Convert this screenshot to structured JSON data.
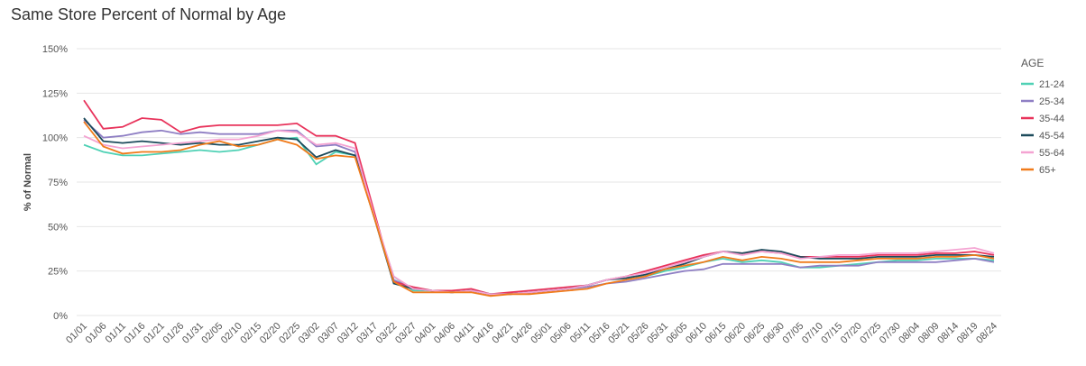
{
  "chart_data": {
    "type": "line",
    "title": "Same Store Percent of Normal by Age",
    "y_label": "% of Normal",
    "legend_title": "AGE",
    "legend_position": "right",
    "grid": true,
    "categories": [
      "01/01",
      "01/06",
      "01/11",
      "01/16",
      "01/21",
      "01/26",
      "01/31",
      "02/05",
      "02/10",
      "02/15",
      "02/20",
      "02/25",
      "03/02",
      "03/07",
      "03/12",
      "03/17",
      "03/22",
      "03/27",
      "04/01",
      "04/06",
      "04/11",
      "04/16",
      "04/21",
      "04/26",
      "05/01",
      "05/06",
      "05/11",
      "05/16",
      "05/21",
      "05/26",
      "05/31",
      "06/05",
      "06/10",
      "06/15",
      "06/20",
      "06/25",
      "06/30",
      "07/05",
      "07/10",
      "07/15",
      "07/20",
      "07/25",
      "07/30",
      "08/04",
      "08/09",
      "08/14",
      "08/19",
      "08/24"
    ],
    "ylim": [
      0,
      150
    ],
    "yticks": [
      {
        "value": 0,
        "label": "0%"
      },
      {
        "value": 25,
        "label": "25%"
      },
      {
        "value": 50,
        "label": "50%"
      },
      {
        "value": 75,
        "label": "75%"
      },
      {
        "value": 100,
        "label": "100%"
      },
      {
        "value": 125,
        "label": "125%"
      },
      {
        "value": 150,
        "label": "150%"
      }
    ],
    "series": [
      {
        "name": "21-24",
        "color": "#4fd1b5",
        "values": [
          96,
          92,
          90,
          90,
          91,
          92,
          93,
          92,
          93,
          96,
          99,
          100,
          85,
          92,
          90,
          55,
          22,
          14,
          14,
          13,
          14,
          12,
          12,
          13,
          14,
          15,
          17,
          20,
          22,
          22,
          25,
          27,
          30,
          32,
          30,
          31,
          30,
          27,
          27,
          28,
          29,
          30,
          31,
          31,
          32,
          32,
          32,
          31
        ]
      },
      {
        "name": "25-34",
        "color": "#8f7fc4",
        "values": [
          110,
          100,
          101,
          103,
          104,
          102,
          103,
          102,
          102,
          102,
          104,
          104,
          95,
          96,
          92,
          56,
          20,
          15,
          14,
          13,
          14,
          12,
          12,
          13,
          14,
          15,
          16,
          18,
          19,
          21,
          23,
          25,
          26,
          29,
          29,
          29,
          29,
          27,
          28,
          28,
          28,
          30,
          30,
          30,
          30,
          31,
          32,
          30
        ]
      },
      {
        "name": "35-44",
        "color": "#e8335b",
        "values": [
          121,
          105,
          106,
          111,
          110,
          103,
          106,
          107,
          107,
          107,
          107,
          108,
          101,
          101,
          97,
          58,
          19,
          16,
          14,
          14,
          15,
          12,
          13,
          14,
          15,
          16,
          17,
          20,
          22,
          25,
          28,
          31,
          34,
          36,
          35,
          36,
          35,
          33,
          33,
          33,
          33,
          34,
          34,
          34,
          35,
          35,
          36,
          34
        ]
      },
      {
        "name": "45-54",
        "color": "#1d4b5c",
        "values": [
          111,
          98,
          97,
          98,
          97,
          96,
          97,
          96,
          96,
          98,
          100,
          99,
          89,
          93,
          90,
          55,
          18,
          15,
          14,
          13,
          14,
          12,
          12,
          13,
          14,
          15,
          17,
          20,
          21,
          23,
          26,
          29,
          33,
          36,
          35,
          37,
          36,
          33,
          32,
          32,
          32,
          33,
          33,
          33,
          34,
          34,
          34,
          33
        ]
      },
      {
        "name": "55-64",
        "color": "#f4a3d2",
        "values": [
          101,
          96,
          94,
          95,
          96,
          97,
          98,
          99,
          99,
          101,
          104,
          103,
          96,
          97,
          94,
          56,
          22,
          15,
          14,
          13,
          14,
          12,
          12,
          13,
          14,
          15,
          17,
          20,
          22,
          24,
          27,
          30,
          33,
          36,
          34,
          36,
          35,
          32,
          33,
          34,
          34,
          35,
          35,
          35,
          36,
          37,
          38,
          35
        ]
      },
      {
        "name": "65+",
        "color": "#f07b1b",
        "values": [
          109,
          95,
          91,
          92,
          92,
          93,
          96,
          98,
          95,
          96,
          99,
          96,
          88,
          90,
          89,
          55,
          19,
          13,
          13,
          13,
          13,
          11,
          12,
          12,
          13,
          14,
          15,
          18,
          20,
          22,
          26,
          28,
          30,
          33,
          31,
          33,
          32,
          30,
          30,
          30,
          31,
          32,
          32,
          32,
          33,
          33,
          34,
          32
        ]
      }
    ]
  }
}
